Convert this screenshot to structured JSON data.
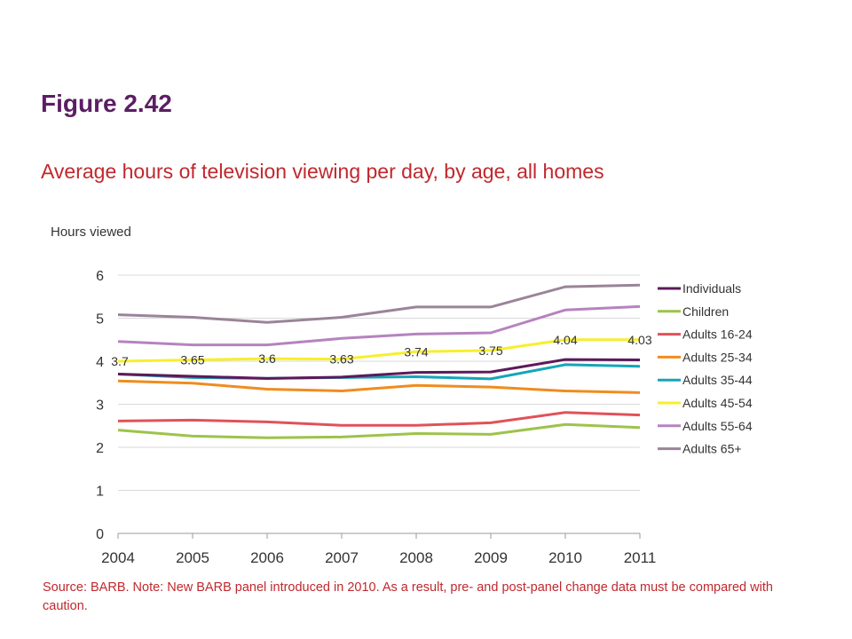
{
  "page": {
    "title": "Figure 2.42",
    "subtitle": "Average hours of television viewing per day, by age, all homes",
    "source": "Source: BARB. Note: New BARB panel introduced in 2010. As a result, pre- and post-panel change data must be compared with caution."
  },
  "chart_data": {
    "type": "line",
    "title": "",
    "xlabel": "",
    "ylabel": "Hours viewed",
    "ylim": [
      0,
      6
    ],
    "yticks": [
      0,
      1,
      2,
      3,
      4,
      5,
      6
    ],
    "grid": true,
    "legend_position": "right",
    "categories": [
      "2004",
      "2005",
      "2006",
      "2007",
      "2008",
      "2009",
      "2010",
      "2011"
    ],
    "series": [
      {
        "name": "Individuals",
        "color": "#5c1a59",
        "values": [
          3.7,
          3.65,
          3.6,
          3.63,
          3.74,
          3.75,
          4.04,
          4.03
        ],
        "data_labels": [
          "3.7",
          "3.65",
          "3.6",
          "3.63",
          "3.74",
          "3.75",
          "4.04",
          "4.03"
        ]
      },
      {
        "name": "Children",
        "color": "#9dc34a",
        "values": [
          2.4,
          2.26,
          2.22,
          2.24,
          2.32,
          2.3,
          2.53,
          2.46
        ]
      },
      {
        "name": "Adults 16-24",
        "color": "#e05258",
        "values": [
          2.61,
          2.63,
          2.59,
          2.51,
          2.51,
          2.57,
          2.81,
          2.75
        ]
      },
      {
        "name": "Adults 25-34",
        "color": "#f08c1e",
        "values": [
          3.54,
          3.49,
          3.35,
          3.31,
          3.44,
          3.4,
          3.31,
          3.27
        ]
      },
      {
        "name": "Adults 35-44",
        "color": "#16a5b8",
        "values": [
          3.7,
          3.62,
          3.6,
          3.62,
          3.64,
          3.59,
          3.92,
          3.88
        ]
      },
      {
        "name": "Adults 45-54",
        "color": "#f7ef2b",
        "values": [
          4.0,
          4.03,
          4.06,
          4.05,
          4.22,
          4.25,
          4.5,
          4.5
        ]
      },
      {
        "name": "Adults 55-64",
        "color": "#b683bf",
        "values": [
          4.46,
          4.38,
          4.38,
          4.53,
          4.63,
          4.66,
          5.19,
          5.27
        ]
      },
      {
        "name": "Adults 65+",
        "color": "#9a8499",
        "values": [
          5.08,
          5.02,
          4.9,
          5.02,
          5.26,
          5.26,
          5.73,
          5.77
        ]
      }
    ]
  }
}
